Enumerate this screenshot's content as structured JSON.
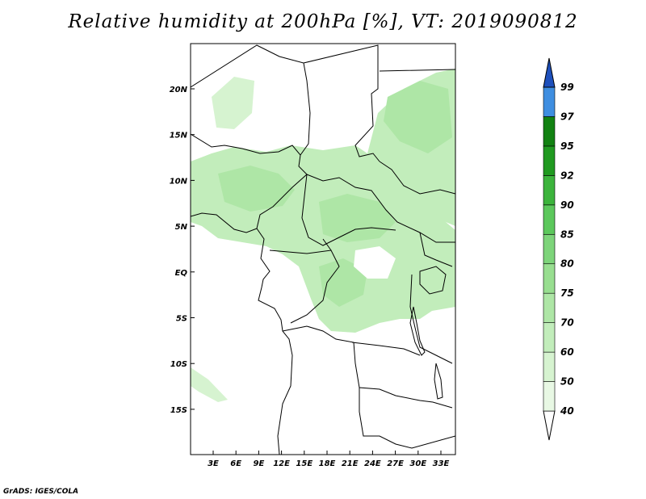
{
  "title": "Relative humidity at 200hPa [%], VT: 2019090812",
  "credit": "GrADS: IGES/COLA",
  "map": {
    "lon_labels": [
      "3E",
      "6E",
      "9E",
      "12E",
      "15E",
      "18E",
      "21E",
      "24E",
      "27E",
      "30E",
      "33E"
    ],
    "lat_labels": [
      "20N",
      "15N",
      "10N",
      "5N",
      "EQ",
      "5S",
      "10S",
      "15S"
    ]
  },
  "colorbar": {
    "levels": [
      "40",
      "50",
      "60",
      "70",
      "75",
      "80",
      "85",
      "90",
      "92",
      "95",
      "97",
      "99"
    ],
    "colors": [
      "#e8f8e4",
      "#d6f3d0",
      "#c2edbb",
      "#aee6a6",
      "#98de90",
      "#7dd47a",
      "#5cc85c",
      "#3cb43c",
      "#209a20",
      "#128212",
      "#3f8ee0",
      "#2a6ed2",
      "#1e50bc"
    ]
  },
  "legend": {
    "field": "Relative humidity",
    "units": "%"
  }
}
